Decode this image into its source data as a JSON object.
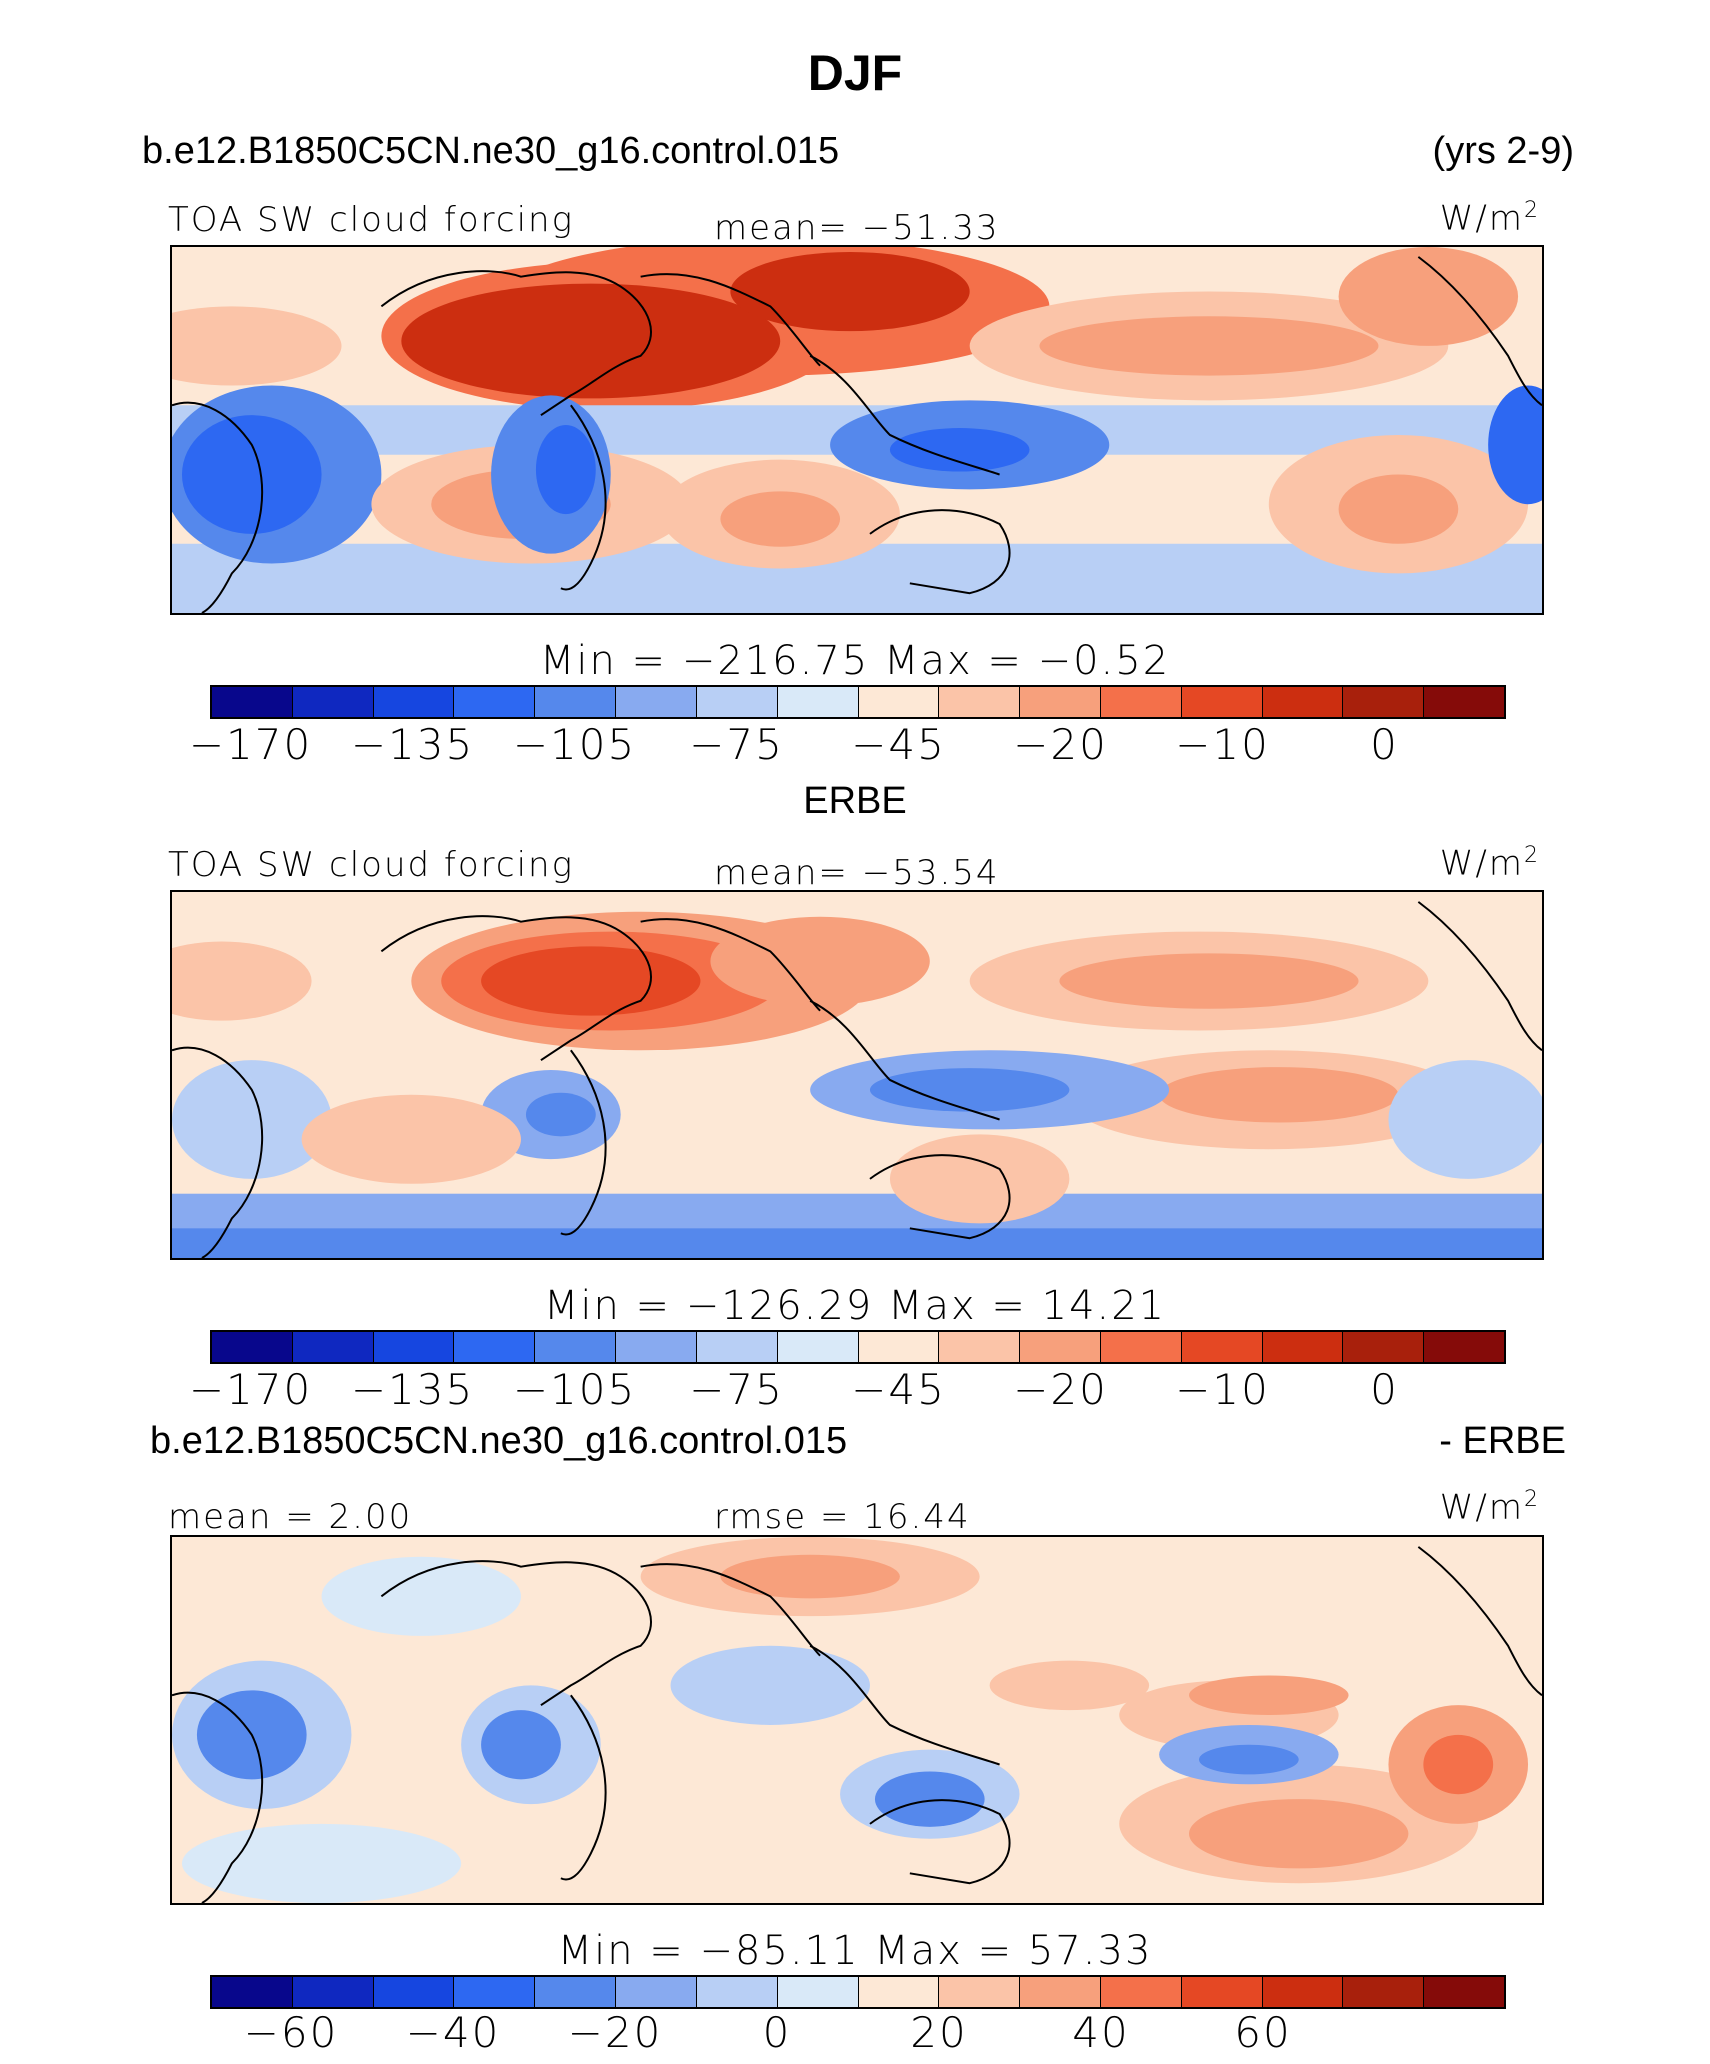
{
  "figure": {
    "title": "DJF",
    "case_name": "b.e12.B1850C5CN.ne30_g16.control.015",
    "years": "(yrs 2-9)",
    "obs_name": "ERBE",
    "diff_case_name": "b.e12.B1850C5CN.ne30_g16.control.015",
    "diff_suffix": "- ERBE"
  },
  "colors": {
    "scale": [
      "#08078c",
      "#0f28c0",
      "#1646e0",
      "#2d68f2",
      "#5588ec",
      "#88aaf0",
      "#b8cff5",
      "#d9e9f8",
      "#fde8d6",
      "#fbc4a8",
      "#f7a07c",
      "#f4704a",
      "#e54824",
      "#cc2e10",
      "#a8200c",
      "#850b09"
    ]
  },
  "panels": [
    {
      "id": "model",
      "variable": "TOA SW cloud forcing",
      "stat_left": "",
      "stat_center": "mean=  −51.33",
      "units_base": "W/m",
      "units_exp": "2",
      "min_max": "Min  =  −216.75  Max  =    −0.52",
      "tick_labels": [
        "−170",
        "−135",
        "−105",
        "−75",
        "−45",
        "−20",
        "−10",
        "0"
      ]
    },
    {
      "id": "obs",
      "variable": "TOA SW cloud forcing",
      "stat_left": "",
      "stat_center": "mean=  −53.54",
      "units_base": "W/m",
      "units_exp": "2",
      "min_max": "Min  =  −126.29  Max  =    14.21",
      "tick_labels": [
        "−170",
        "−135",
        "−105",
        "−75",
        "−45",
        "−20",
        "−10",
        "0"
      ]
    },
    {
      "id": "diff",
      "variable": "",
      "stat_left": "mean  =    2.00",
      "stat_center": "rmse  =   16.44",
      "units_base": "W/m",
      "units_exp": "2",
      "min_max": "Min  =  −85.11  Max  =    57.33",
      "tick_labels": [
        "−60",
        "−40",
        "−20",
        "0",
        "20",
        "40",
        "60"
      ]
    }
  ]
}
